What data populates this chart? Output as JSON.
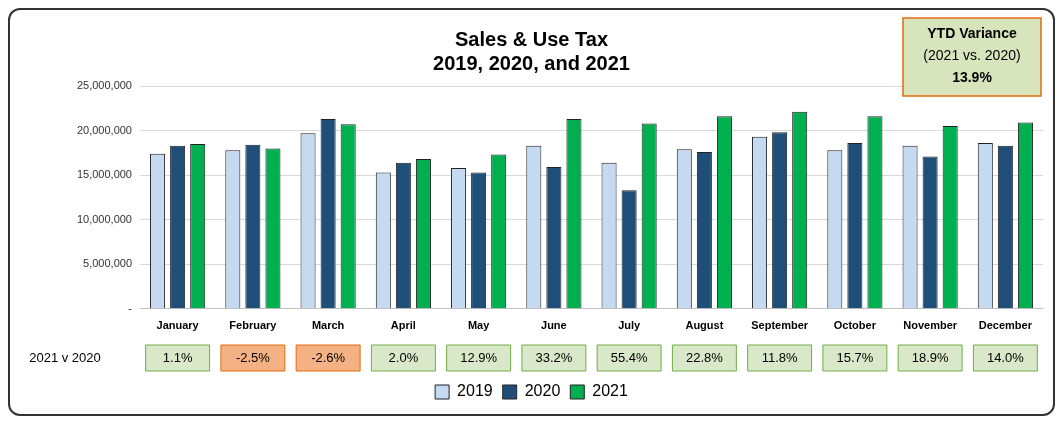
{
  "chart_data": {
    "type": "bar",
    "title": "Sales & Use Tax\n2019, 2020, and 2021",
    "categories": [
      "January",
      "February",
      "March",
      "April",
      "May",
      "June",
      "July",
      "August",
      "September",
      "October",
      "November",
      "December"
    ],
    "series": [
      {
        "name": "2019",
        "color": "#c5d9f1",
        "values": [
          17400000,
          17800000,
          19700000,
          15300000,
          15800000,
          18300000,
          16400000,
          17900000,
          19300000,
          17800000,
          18300000,
          18600000
        ]
      },
      {
        "name": "2020",
        "color": "#1f4e79",
        "values": [
          18300000,
          18400000,
          21300000,
          16400000,
          15300000,
          15900000,
          13300000,
          17600000,
          19800000,
          18600000,
          17100000,
          18300000
        ]
      },
      {
        "name": "2021",
        "color": "#00b050",
        "values": [
          18500000,
          18000000,
          20700000,
          16800000,
          17300000,
          21300000,
          20800000,
          21600000,
          22100000,
          21600000,
          20500000,
          20900000
        ]
      }
    ],
    "ylim": [
      0,
      25000000
    ],
    "yticks": [
      {
        "value": 0,
        "label": "-"
      },
      {
        "value": 5000000,
        "label": "5,000,000"
      },
      {
        "value": 10000000,
        "label": "10,000,000"
      },
      {
        "value": 15000000,
        "label": "15,000,000"
      },
      {
        "value": 20000000,
        "label": "20,000,000"
      },
      {
        "value": 25000000,
        "label": "25,000,000"
      }
    ],
    "grid": "y",
    "legend": "bottom",
    "annotations": [
      "YTD Variance",
      "(2021 vs. 2020)",
      "13.9%",
      "2021 v 2020",
      "1.1%",
      "-2.5%",
      "-2.6%",
      "2.0%",
      "12.9%",
      "33.2%",
      "55.4%",
      "22.8%",
      "11.8%",
      "15.7%",
      "18.9%",
      "14.0%"
    ]
  }
}
